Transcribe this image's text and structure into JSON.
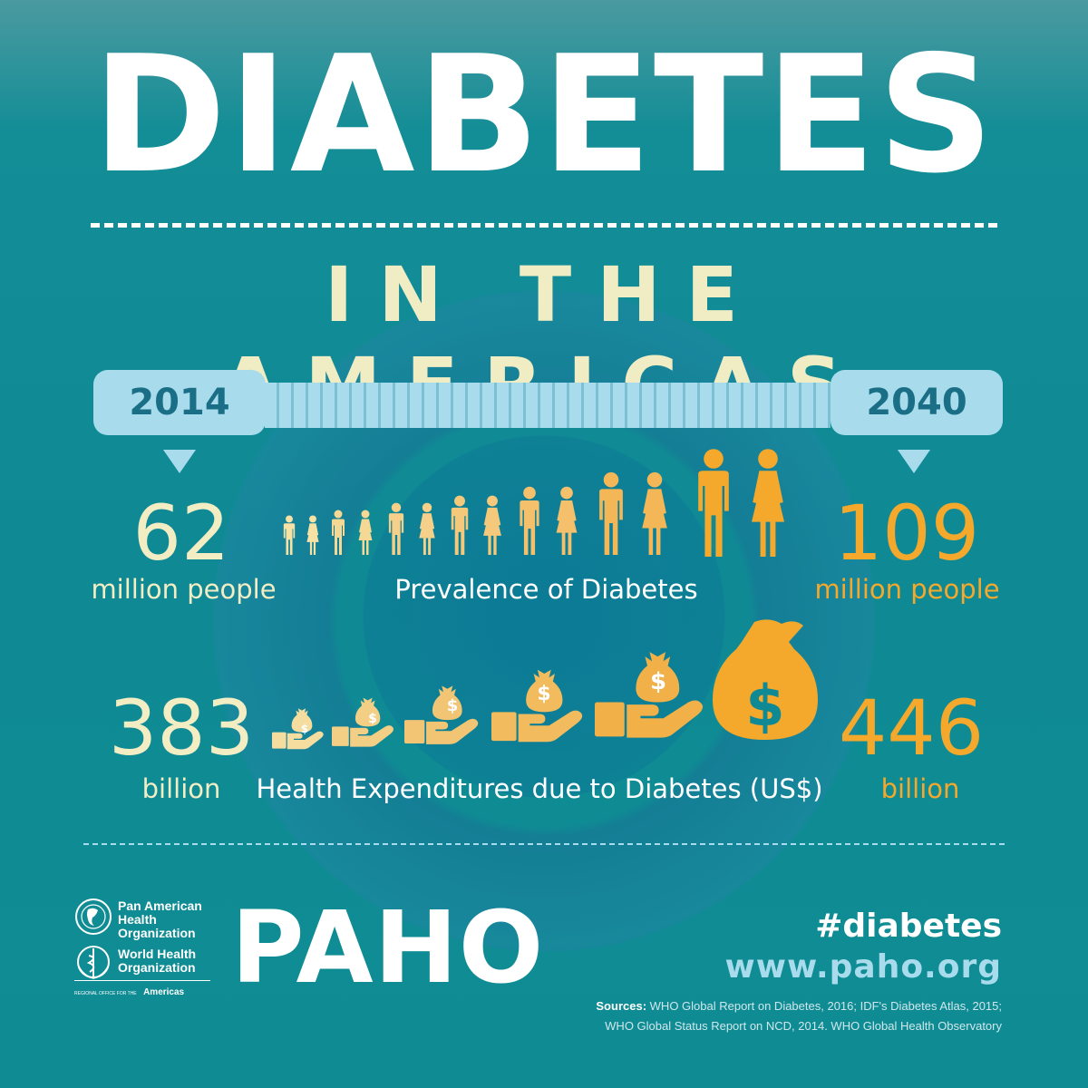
{
  "title": "DIABETES",
  "subtitle": "IN THE AMERICAS",
  "timeline": {
    "start_year": "2014",
    "end_year": "2040"
  },
  "prevalence": {
    "start_value": "62",
    "start_unit": "million people",
    "end_value": "109",
    "end_unit": "million people",
    "caption": "Prevalence of Diabetes"
  },
  "expenditures": {
    "start_value": "383",
    "start_unit": "billion",
    "end_value": "446",
    "end_unit": "billion",
    "caption": "Health Expenditures due to Diabetes (US$)"
  },
  "footer": {
    "org1": [
      "Pan American",
      "Health",
      "Organization"
    ],
    "org2": [
      "World Health",
      "Organization"
    ],
    "regional_office": "REGIONAL OFFICE FOR THE",
    "regional_name": "Americas",
    "logo": "PAHO",
    "hashtag": "#diabetes",
    "website": "www.paho.org",
    "sources_label": "Sources:",
    "sources_line1": "WHO Global Report on Diabetes, 2016; IDF's Diabetes Atlas, 2015;",
    "sources_line2": "WHO Global Status Report on NCD, 2014. WHO Global Health Observatory"
  },
  "icons": {
    "people": "person-icon",
    "money": "money-bag-icon"
  },
  "colors": {
    "cream": "#f3edc4",
    "orange": "#f4a82c",
    "light_blue": "#a8dcec",
    "teal": "#0f8a95"
  }
}
